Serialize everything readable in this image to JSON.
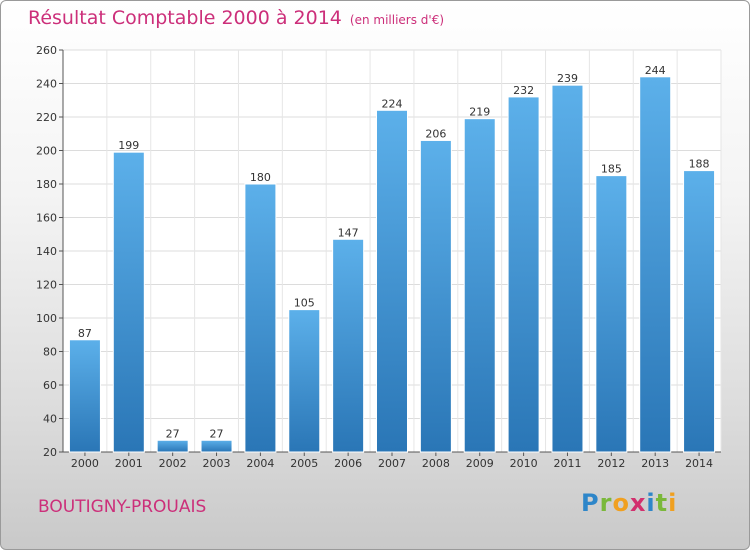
{
  "header": {
    "title": "Résultat Comptable 2000 à 2014",
    "subtitle": "(en milliers d'€)"
  },
  "footer": {
    "commune": "BOUTIGNY-PROUAIS",
    "logo_text": "Proxiti"
  },
  "colors": {
    "accent": "#cc2f7a",
    "bar_light": "#5aaee8",
    "bar_dark": "#2a78b8"
  },
  "chart_data": {
    "type": "bar",
    "title": "Résultat Comptable 2000 à 2014",
    "subtitle": "(en milliers d'€)",
    "xlabel": "",
    "ylabel": "",
    "categories": [
      "2000",
      "2001",
      "2002",
      "2003",
      "2004",
      "2005",
      "2006",
      "2007",
      "2008",
      "2009",
      "2010",
      "2011",
      "2012",
      "2013",
      "2014"
    ],
    "values": [
      87,
      199,
      27,
      27,
      180,
      105,
      147,
      224,
      206,
      219,
      232,
      239,
      185,
      244,
      188
    ],
    "ylim": [
      20,
      260
    ],
    "yticks": [
      20,
      40,
      60,
      80,
      100,
      120,
      140,
      160,
      180,
      200,
      220,
      240,
      260
    ],
    "grid": true,
    "legend": "none"
  }
}
